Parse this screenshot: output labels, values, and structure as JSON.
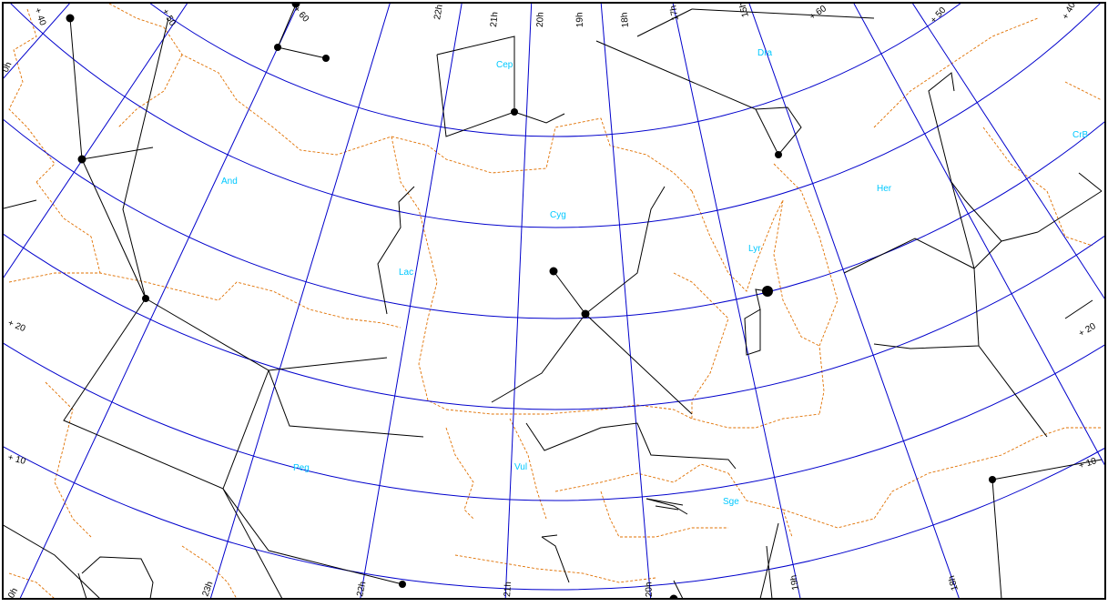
{
  "colors": {
    "background": "#ffffff",
    "frame": "#000000",
    "grid": "#0000cc",
    "boundary": "#e07000",
    "stick": "#000000",
    "label": "#00c8ff"
  },
  "constellations": [
    "Cep",
    "Dra",
    "And",
    "Cyg",
    "Her",
    "CrB",
    "Lyr",
    "Lac",
    "Peg",
    "Vul",
    "Sge"
  ],
  "ra_labels": [
    "0h",
    "22h",
    "21h",
    "20h",
    "19h",
    "18h",
    "17h",
    "15h",
    "23h",
    "22h",
    "21h",
    "20h",
    "19h",
    "18h",
    "0h"
  ],
  "dec_labels": [
    "+ 40",
    "+ 50",
    "+ 60",
    "+ 60",
    "+ 50",
    "+ 40",
    "+ 20",
    "+ 20",
    "+ 10",
    "+ 10"
  ]
}
